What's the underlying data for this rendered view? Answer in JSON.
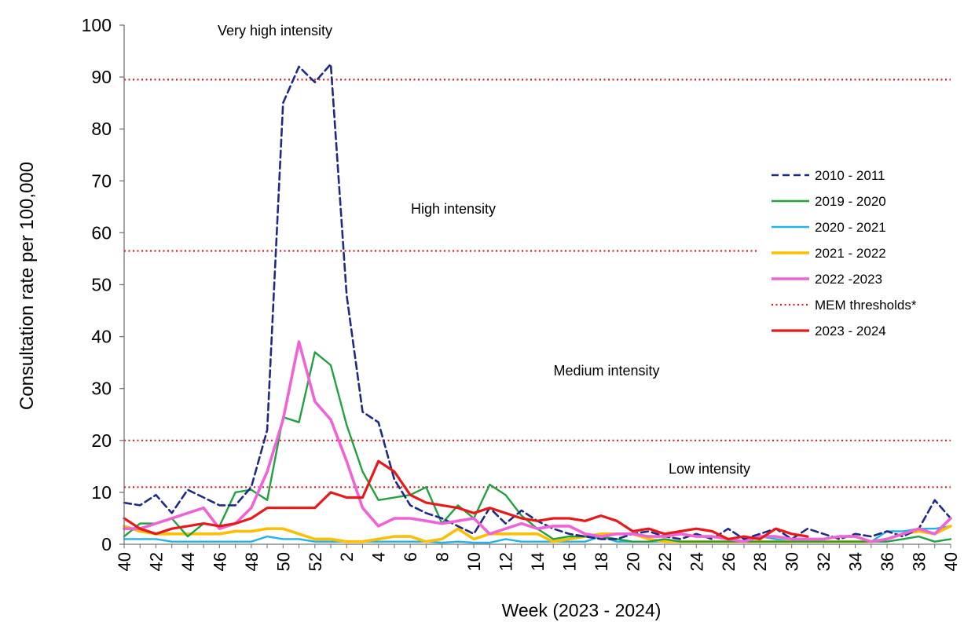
{
  "chart_data": {
    "type": "line",
    "title": "",
    "xlabel": "Week (2023 - 2024)",
    "ylabel": "Consultation  rate per 100,000",
    "ylim": [
      0,
      100
    ],
    "yticks": [
      0,
      10,
      20,
      30,
      40,
      50,
      60,
      70,
      80,
      90,
      100
    ],
    "grid": false,
    "legend_position": "right",
    "weeks": [
      40,
      41,
      42,
      43,
      44,
      45,
      46,
      47,
      48,
      49,
      50,
      51,
      52,
      1,
      2,
      3,
      4,
      5,
      6,
      7,
      8,
      9,
      10,
      11,
      12,
      13,
      14,
      15,
      16,
      17,
      18,
      19,
      20,
      21,
      22,
      23,
      24,
      25,
      26,
      27,
      28,
      29,
      30,
      31,
      32,
      33,
      34,
      35,
      36,
      37,
      38,
      39,
      40
    ],
    "tick_labels": [
      "40",
      "42",
      "44",
      "46",
      "48",
      "50",
      "52",
      "2",
      "4",
      "6",
      "8",
      "10",
      "12",
      "14",
      "16",
      "18",
      "20",
      "22",
      "24",
      "26",
      "28",
      "30",
      "32",
      "34",
      "36",
      "38",
      "40"
    ],
    "thresholds": {
      "values": [
        11,
        20,
        56.5,
        89.5
      ],
      "color": "#e31a1c"
    },
    "zones": [
      "Very high intensity",
      "High intensity",
      "Medium intensity",
      "Low intensity"
    ],
    "series": [
      {
        "name": "2010 - 2011",
        "color": "#1f2a86",
        "style": "dashed",
        "values": [
          8,
          7.5,
          9.5,
          6,
          10.5,
          9,
          7.5,
          7.5,
          11,
          22,
          85,
          92,
          89,
          92.5,
          48,
          25.5,
          23.5,
          12.5,
          7.5,
          6,
          5,
          3.5,
          2,
          7,
          4,
          6.5,
          4.5,
          3,
          2,
          1.5,
          1,
          1,
          2,
          2.5,
          1.5,
          1,
          2,
          1,
          3,
          1,
          2,
          3,
          1,
          3,
          2,
          1,
          2,
          1.5,
          2.5,
          1.5,
          3,
          8.5,
          5
        ]
      },
      {
        "name": "2019 - 2020",
        "color": "#1fa23f",
        "style": "solid",
        "values": [
          1.5,
          4,
          4,
          5,
          1.5,
          4,
          3.5,
          10,
          10.5,
          8.5,
          24.5,
          23.5,
          37,
          34.5,
          23,
          14,
          8.5,
          9,
          9.5,
          11,
          4,
          7.5,
          5,
          11.5,
          9.5,
          5.5,
          3,
          1,
          1.5,
          1.5,
          1.5,
          1,
          0.5,
          0.5,
          1,
          0.5,
          0.5,
          0.5,
          0.5,
          0.5,
          0.5,
          0.5,
          0.5,
          0.5,
          0.5,
          0.5,
          0.5,
          0.5,
          0.5,
          1,
          1.5,
          0.5,
          1
        ]
      },
      {
        "name": "2020 - 2021",
        "color": "#22b4e8",
        "style": "solid",
        "values": [
          1,
          1,
          1,
          0.5,
          0.5,
          0.5,
          0.5,
          0.5,
          0.5,
          1.5,
          1,
          1,
          0.5,
          0.5,
          0.5,
          0.5,
          0.5,
          0.5,
          0.5,
          0.5,
          0.3,
          0.5,
          0.3,
          0.3,
          1,
          0.5,
          0.5,
          0.5,
          0.5,
          0.5,
          1.5,
          0.5,
          0.5,
          0.5,
          0.5,
          0.5,
          0.5,
          0.5,
          0.5,
          0.5,
          1.5,
          1,
          0.5,
          0.5,
          0.5,
          0.5,
          0.5,
          0.5,
          2.5,
          2.5,
          3,
          3,
          3.5
        ]
      },
      {
        "name": "2021 - 2022",
        "color": "#ffbf00",
        "style": "solid",
        "values": [
          3.5,
          2.5,
          2,
          2,
          2,
          2,
          2,
          2.5,
          2.5,
          3,
          3,
          2,
          1,
          1,
          0.5,
          0.5,
          1,
          1.5,
          1.5,
          0.5,
          1,
          3,
          1,
          2,
          2,
          2,
          2,
          0.5,
          1,
          1.5,
          2,
          2,
          2,
          1,
          0.5,
          0.5,
          0.5,
          0.5,
          0.5,
          0.5,
          0.5,
          0.5,
          0.5,
          0.5,
          0.5,
          0.5,
          0.5,
          0.5,
          1,
          2,
          2.5,
          2,
          3.5
        ]
      },
      {
        "name": "2022 -2023",
        "color": "#f062d8",
        "style": "solid",
        "values": [
          3,
          3,
          4,
          5,
          6,
          7,
          3,
          4,
          7,
          14,
          24,
          39,
          27.5,
          24,
          16,
          7,
          3.5,
          5,
          5,
          4.5,
          4,
          4.5,
          5,
          2,
          3,
          4,
          3,
          3.5,
          3.5,
          2,
          1.5,
          2,
          2,
          1.5,
          1.5,
          2,
          1.5,
          1.5,
          1,
          0.5,
          1.5,
          1.5,
          1,
          1,
          1,
          1.5,
          1.5,
          0.5,
          1,
          2,
          3,
          2,
          5
        ]
      },
      {
        "name": "MEM thresholds*",
        "color": "#e31a1c",
        "style": "dotted",
        "values": []
      },
      {
        "name": "2023 - 2024",
        "color": "#e8191a",
        "style": "solid",
        "values": [
          5,
          3,
          2,
          3,
          3.5,
          4,
          3.5,
          4,
          5,
          7,
          7,
          7,
          7,
          10,
          9,
          9,
          16,
          14,
          9.5,
          8,
          7.5,
          7,
          6,
          7,
          6,
          5,
          4.5,
          5,
          5,
          4.5,
          5.5,
          4.5,
          2.5,
          3,
          2,
          2.5,
          3,
          2.5,
          1,
          1.5,
          1,
          3,
          2,
          1.5
        ]
      }
    ]
  }
}
